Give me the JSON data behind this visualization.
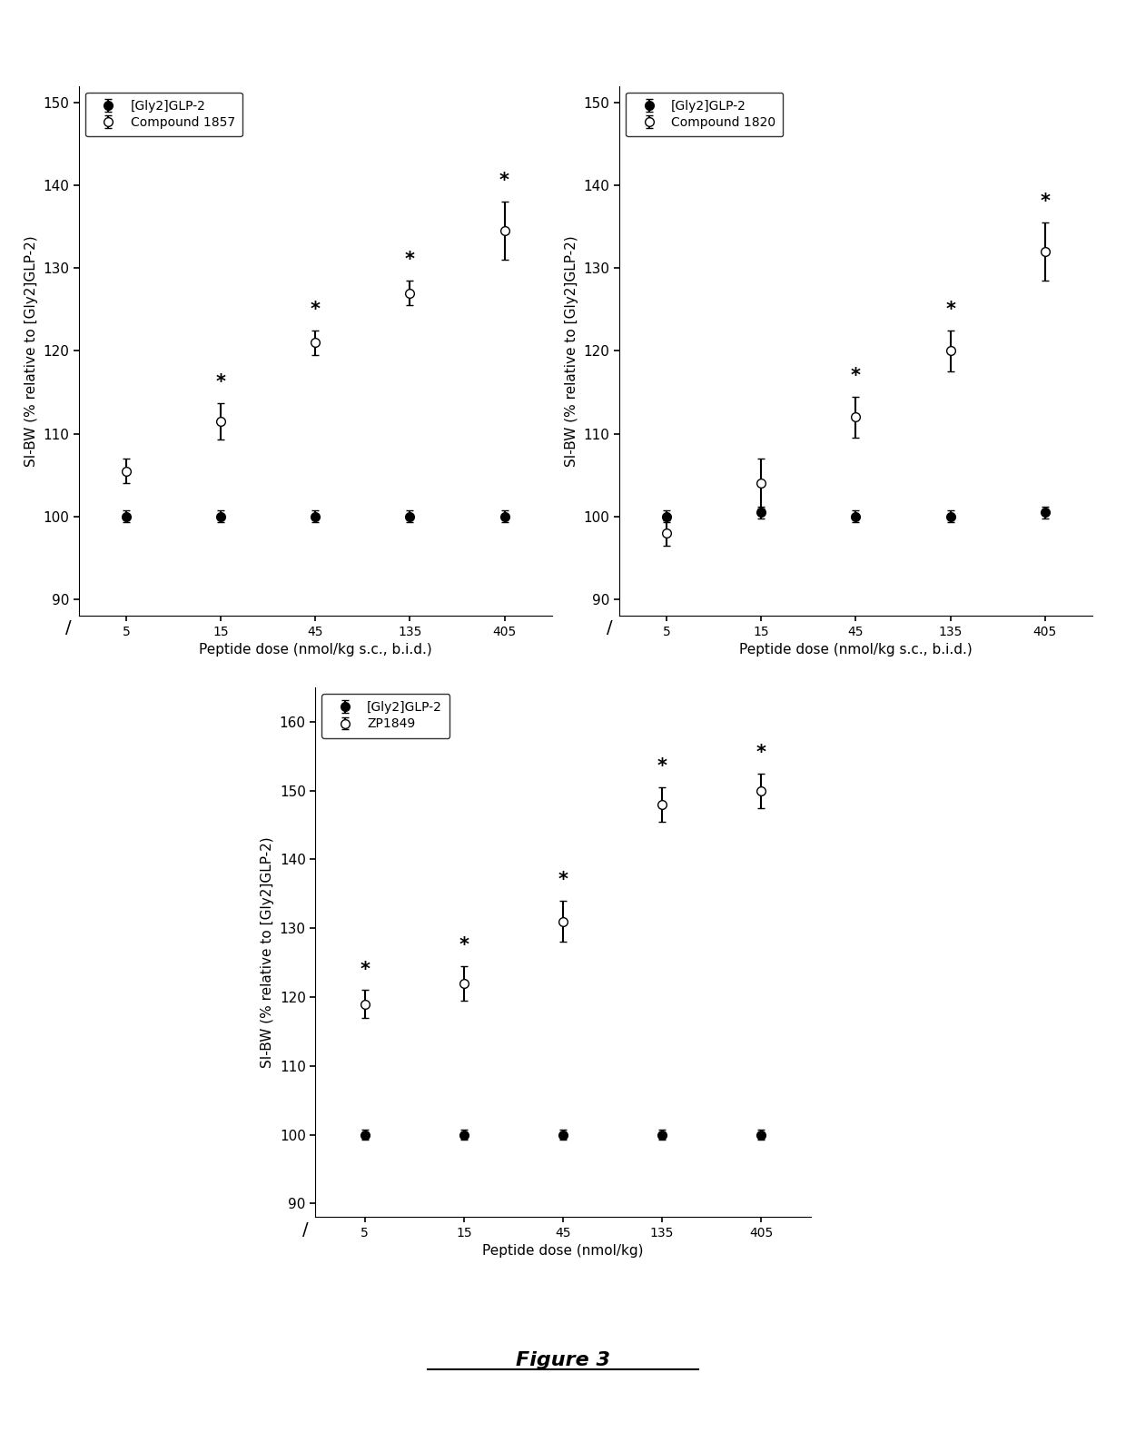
{
  "x_positions": [
    0,
    1,
    2,
    3,
    4
  ],
  "x_labels": [
    "5",
    "15",
    "45",
    "135",
    "405"
  ],
  "plot1": {
    "compound_name": "Compound 1857",
    "glp2_y": [
      100,
      100,
      100,
      100,
      100
    ],
    "glp2_yerr": [
      0.7,
      0.7,
      0.7,
      0.7,
      0.7
    ],
    "compound_y": [
      105.5,
      111.5,
      121.0,
      127.0,
      134.5
    ],
    "compound_yerr": [
      1.5,
      2.2,
      1.5,
      1.5,
      3.5
    ],
    "sig_indices": [
      1,
      2,
      3,
      4
    ],
    "ylim_lo": 88,
    "ylim_hi": 152,
    "yticks": [
      90,
      100,
      110,
      120,
      130,
      140,
      150
    ],
    "xlabel": "Peptide dose (nmol/kg s.c., b.i.d.)",
    "ylabel": "SI-BW (% relative to [Gly2]GLP-2)"
  },
  "plot2": {
    "compound_name": "Compound 1820",
    "glp2_y": [
      100,
      100.5,
      100,
      100,
      100.5
    ],
    "glp2_yerr": [
      0.7,
      0.7,
      0.7,
      0.7,
      0.7
    ],
    "compound_y": [
      98.0,
      104.0,
      112.0,
      120.0,
      132.0
    ],
    "compound_yerr": [
      1.5,
      3.0,
      2.5,
      2.5,
      3.5
    ],
    "sig_indices": [
      2,
      3,
      4
    ],
    "ylim_lo": 88,
    "ylim_hi": 152,
    "yticks": [
      90,
      100,
      110,
      120,
      130,
      140,
      150
    ],
    "xlabel": "Peptide dose (nmol/kg s.c., b.i.d.)",
    "ylabel": "SI-BW (% relative to [Gly2]GLP-2)"
  },
  "plot3": {
    "compound_name": "ZP1849",
    "glp2_y": [
      100,
      100,
      100,
      100,
      100
    ],
    "glp2_yerr": [
      0.7,
      0.7,
      0.7,
      0.7,
      0.7
    ],
    "compound_y": [
      119.0,
      122.0,
      131.0,
      148.0,
      150.0
    ],
    "compound_yerr": [
      2.0,
      2.5,
      3.0,
      2.5,
      2.5
    ],
    "sig_indices": [
      0,
      1,
      2,
      3,
      4
    ],
    "ylim_lo": 88,
    "ylim_hi": 165,
    "yticks": [
      90,
      100,
      110,
      120,
      130,
      140,
      150,
      160
    ],
    "xlabel": "Peptide dose (nmol/kg)",
    "ylabel": "SI-BW (% relative to [Gly2]GLP-2)"
  },
  "glp2_label": "[Gly2]GLP-2",
  "figure_label": "Figure 3"
}
